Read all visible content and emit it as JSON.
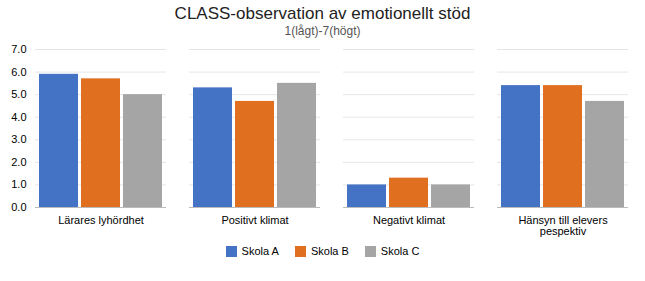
{
  "chart_data": {
    "type": "bar",
    "title": "CLASS-observation av emotionellt stöd",
    "subtitle": "1(lågt)-7(högt)",
    "categories": [
      "Lärares lyhördhet",
      "Positivt klimat",
      "Negativt klimat",
      "Hänsyn till elevers\npespektiv"
    ],
    "series": [
      {
        "name": "Skola A",
        "color": "#4472C4",
        "values": [
          5.9,
          5.3,
          1.0,
          5.4
        ]
      },
      {
        "name": "Skola B",
        "color": "#E07020",
        "values": [
          5.7,
          4.7,
          1.3,
          5.4
        ]
      },
      {
        "name": "Skola C",
        "color": "#A5A5A5",
        "values": [
          5.0,
          5.5,
          1.0,
          4.7
        ]
      }
    ],
    "ylim": [
      0,
      7
    ],
    "yticks": [
      0,
      1,
      2,
      3,
      4,
      5,
      6,
      7
    ],
    "grid": true,
    "legend": "bottom"
  }
}
